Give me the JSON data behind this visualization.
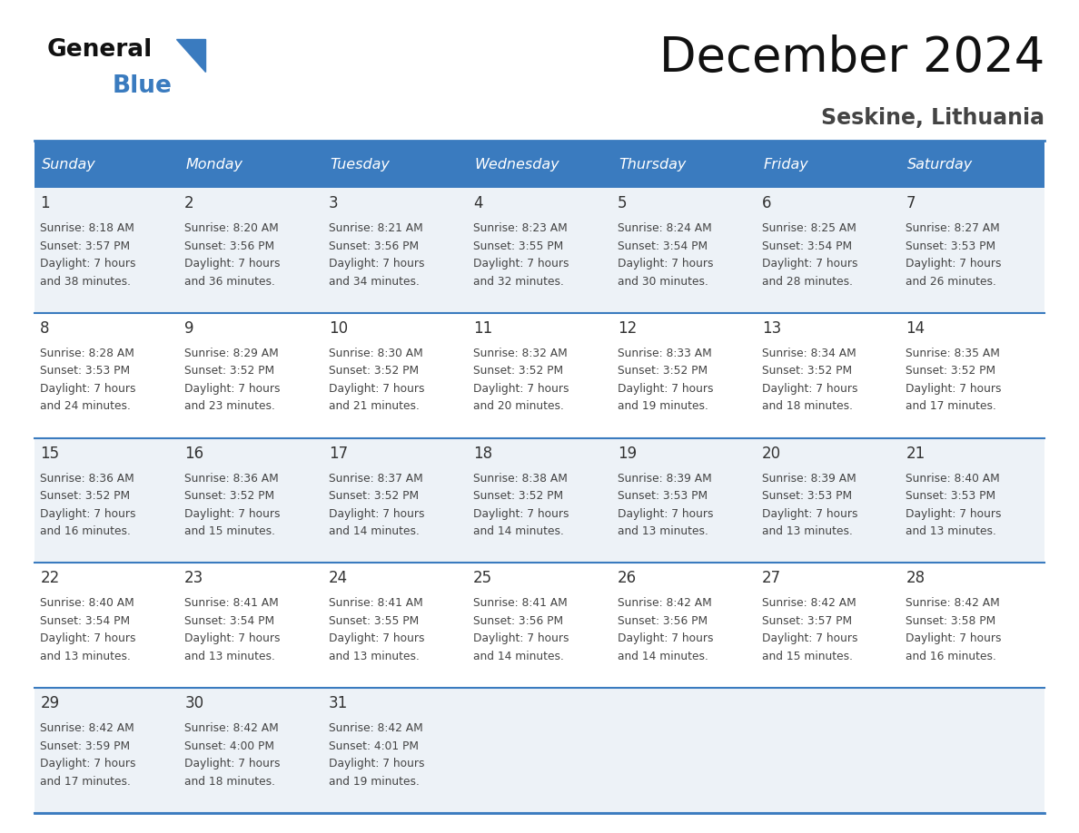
{
  "title": "December 2024",
  "subtitle": "Seskine, Lithuania",
  "days_of_week": [
    "Sunday",
    "Monday",
    "Tuesday",
    "Wednesday",
    "Thursday",
    "Friday",
    "Saturday"
  ],
  "header_bg": "#3a7bbf",
  "header_text": "#ffffff",
  "row_bg_odd": "#edf2f7",
  "row_bg_even": "#ffffff",
  "cell_text_color": "#444444",
  "day_number_color": "#333333",
  "border_color": "#3a7bbf",
  "title_color": "#111111",
  "subtitle_color": "#444444",
  "calendar_data": [
    [
      {
        "day": 1,
        "sunrise": "8:18 AM",
        "sunset": "3:57 PM",
        "daylight_suffix": "38 minutes."
      },
      {
        "day": 2,
        "sunrise": "8:20 AM",
        "sunset": "3:56 PM",
        "daylight_suffix": "36 minutes."
      },
      {
        "day": 3,
        "sunrise": "8:21 AM",
        "sunset": "3:56 PM",
        "daylight_suffix": "34 minutes."
      },
      {
        "day": 4,
        "sunrise": "8:23 AM",
        "sunset": "3:55 PM",
        "daylight_suffix": "32 minutes."
      },
      {
        "day": 5,
        "sunrise": "8:24 AM",
        "sunset": "3:54 PM",
        "daylight_suffix": "30 minutes."
      },
      {
        "day": 6,
        "sunrise": "8:25 AM",
        "sunset": "3:54 PM",
        "daylight_suffix": "28 minutes."
      },
      {
        "day": 7,
        "sunrise": "8:27 AM",
        "sunset": "3:53 PM",
        "daylight_suffix": "26 minutes."
      }
    ],
    [
      {
        "day": 8,
        "sunrise": "8:28 AM",
        "sunset": "3:53 PM",
        "daylight_suffix": "24 minutes."
      },
      {
        "day": 9,
        "sunrise": "8:29 AM",
        "sunset": "3:52 PM",
        "daylight_suffix": "23 minutes."
      },
      {
        "day": 10,
        "sunrise": "8:30 AM",
        "sunset": "3:52 PM",
        "daylight_suffix": "21 minutes."
      },
      {
        "day": 11,
        "sunrise": "8:32 AM",
        "sunset": "3:52 PM",
        "daylight_suffix": "20 minutes."
      },
      {
        "day": 12,
        "sunrise": "8:33 AM",
        "sunset": "3:52 PM",
        "daylight_suffix": "19 minutes."
      },
      {
        "day": 13,
        "sunrise": "8:34 AM",
        "sunset": "3:52 PM",
        "daylight_suffix": "18 minutes."
      },
      {
        "day": 14,
        "sunrise": "8:35 AM",
        "sunset": "3:52 PM",
        "daylight_suffix": "17 minutes."
      }
    ],
    [
      {
        "day": 15,
        "sunrise": "8:36 AM",
        "sunset": "3:52 PM",
        "daylight_suffix": "16 minutes."
      },
      {
        "day": 16,
        "sunrise": "8:36 AM",
        "sunset": "3:52 PM",
        "daylight_suffix": "15 minutes."
      },
      {
        "day": 17,
        "sunrise": "8:37 AM",
        "sunset": "3:52 PM",
        "daylight_suffix": "14 minutes."
      },
      {
        "day": 18,
        "sunrise": "8:38 AM",
        "sunset": "3:52 PM",
        "daylight_suffix": "14 minutes."
      },
      {
        "day": 19,
        "sunrise": "8:39 AM",
        "sunset": "3:53 PM",
        "daylight_suffix": "13 minutes."
      },
      {
        "day": 20,
        "sunrise": "8:39 AM",
        "sunset": "3:53 PM",
        "daylight_suffix": "13 minutes."
      },
      {
        "day": 21,
        "sunrise": "8:40 AM",
        "sunset": "3:53 PM",
        "daylight_suffix": "13 minutes."
      }
    ],
    [
      {
        "day": 22,
        "sunrise": "8:40 AM",
        "sunset": "3:54 PM",
        "daylight_suffix": "13 minutes."
      },
      {
        "day": 23,
        "sunrise": "8:41 AM",
        "sunset": "3:54 PM",
        "daylight_suffix": "13 minutes."
      },
      {
        "day": 24,
        "sunrise": "8:41 AM",
        "sunset": "3:55 PM",
        "daylight_suffix": "13 minutes."
      },
      {
        "day": 25,
        "sunrise": "8:41 AM",
        "sunset": "3:56 PM",
        "daylight_suffix": "14 minutes."
      },
      {
        "day": 26,
        "sunrise": "8:42 AM",
        "sunset": "3:56 PM",
        "daylight_suffix": "14 minutes."
      },
      {
        "day": 27,
        "sunrise": "8:42 AM",
        "sunset": "3:57 PM",
        "daylight_suffix": "15 minutes."
      },
      {
        "day": 28,
        "sunrise": "8:42 AM",
        "sunset": "3:58 PM",
        "daylight_suffix": "16 minutes."
      }
    ],
    [
      {
        "day": 29,
        "sunrise": "8:42 AM",
        "sunset": "3:59 PM",
        "daylight_suffix": "17 minutes."
      },
      {
        "day": 30,
        "sunrise": "8:42 AM",
        "sunset": "4:00 PM",
        "daylight_suffix": "18 minutes."
      },
      {
        "day": 31,
        "sunrise": "8:42 AM",
        "sunset": "4:01 PM",
        "daylight_suffix": "19 minutes."
      },
      null,
      null,
      null,
      null
    ]
  ]
}
